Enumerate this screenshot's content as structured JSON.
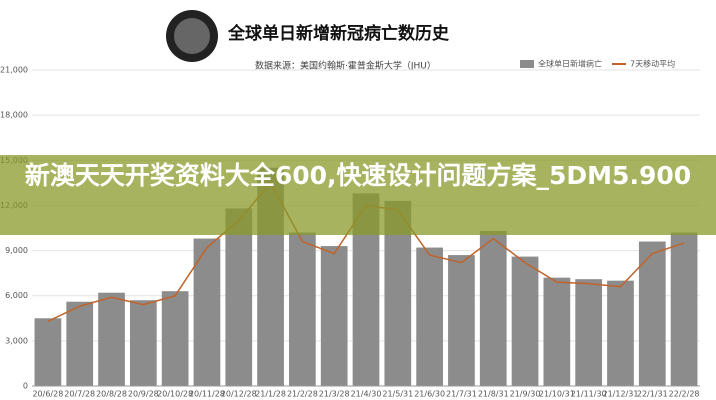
{
  "banner": "新澳天天开奖资料大全600,快速设计问题方案_5DM5.900",
  "chart_data": {
    "type": "bar",
    "title": "全球单日新增新冠病亡数历史",
    "subtitle": "数据来源：美国约翰斯·霍普金斯大学（JHU）",
    "categories": [
      "20/6/28",
      "20/7/28",
      "20/8/28",
      "20/9/28",
      "20/10/28",
      "20/11/28",
      "20/12/28",
      "21/1/28",
      "21/2/28",
      "21/3/28",
      "21/4/30",
      "21/5/31",
      "21/6/30",
      "21/7/31",
      "21/8/31",
      "21/9/30",
      "21/10/31",
      "21/11/30",
      "21/12/31",
      "22/1/31",
      "22/2/28"
    ],
    "series": [
      {
        "name": "全球单日新增病亡",
        "color": "#8c8c8c",
        "values": [
          4500,
          5600,
          6200,
          5700,
          6300,
          9800,
          11800,
          14500,
          10200,
          9300,
          12800,
          12300,
          9200,
          8700,
          10300,
          8600,
          7200,
          7100,
          7000,
          9600,
          10200
        ]
      },
      {
        "name": "7天移动平均",
        "color": "#c0632a",
        "type": "line",
        "values": [
          4300,
          5300,
          5900,
          5400,
          6000,
          9200,
          11000,
          13500,
          9600,
          8800,
          12000,
          11700,
          8700,
          8200,
          9800,
          8200,
          6900,
          6800,
          6600,
          8800,
          9500
        ]
      }
    ],
    "ylim": [
      0,
      21000
    ],
    "yticks": [
      0,
      {
        "value": 3000,
        "label": "3,000"
      },
      {
        "value": 6000,
        "label": "6,000"
      },
      {
        "value": 9000,
        "label": "9,000"
      },
      {
        "value": 12000,
        "label": "12,000"
      },
      {
        "value": 15000,
        "label": "15,000"
      },
      {
        "value": 18000,
        "label": "18,000"
      },
      {
        "value": 21000,
        "label": "21,000"
      }
    ],
    "grid": true
  }
}
